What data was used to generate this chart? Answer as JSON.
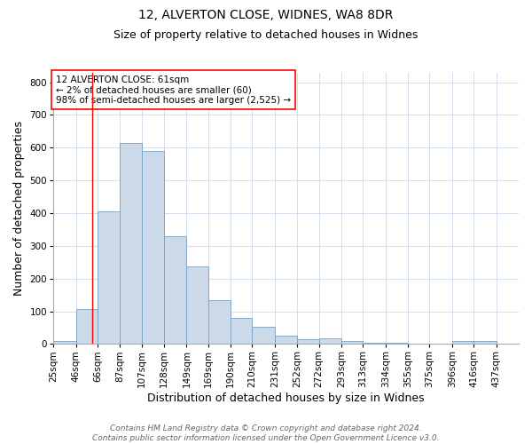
{
  "title1": "12, ALVERTON CLOSE, WIDNES, WA8 8DR",
  "title2": "Size of property relative to detached houses in Widnes",
  "xlabel": "Distribution of detached houses by size in Widnes",
  "ylabel": "Number of detached properties",
  "annotation_line1": "12 ALVERTON CLOSE: 61sqm",
  "annotation_line2": "← 2% of detached houses are smaller (60)",
  "annotation_line3": "98% of semi-detached houses are larger (2,525) →",
  "footer1": "Contains HM Land Registry data © Crown copyright and database right 2024.",
  "footer2": "Contains public sector information licensed under the Open Government Licence v3.0.",
  "bar_color": "#ccd9e8",
  "bar_edge_color": "#7a9fbe",
  "red_line_x": 61,
  "categories": [
    "25sqm",
    "46sqm",
    "66sqm",
    "87sqm",
    "107sqm",
    "128sqm",
    "149sqm",
    "169sqm",
    "190sqm",
    "210sqm",
    "231sqm",
    "252sqm",
    "272sqm",
    "293sqm",
    "313sqm",
    "334sqm",
    "355sqm",
    "375sqm",
    "396sqm",
    "416sqm",
    "437sqm"
  ],
  "bin_edges": [
    25,
    46,
    66,
    87,
    107,
    128,
    149,
    169,
    190,
    210,
    231,
    252,
    272,
    293,
    313,
    334,
    355,
    375,
    396,
    416,
    437,
    458
  ],
  "values": [
    8,
    107,
    405,
    615,
    590,
    330,
    238,
    135,
    80,
    52,
    25,
    15,
    18,
    10,
    5,
    3,
    2,
    1,
    8,
    10,
    0
  ],
  "ylim": [
    0,
    830
  ],
  "yticks": [
    0,
    100,
    200,
    300,
    400,
    500,
    600,
    700,
    800
  ],
  "title_fontsize": 10,
  "subtitle_fontsize": 9,
  "tick_fontsize": 7.5,
  "label_fontsize": 9,
  "footer_fontsize": 6.5,
  "annot_fontsize": 7.5
}
